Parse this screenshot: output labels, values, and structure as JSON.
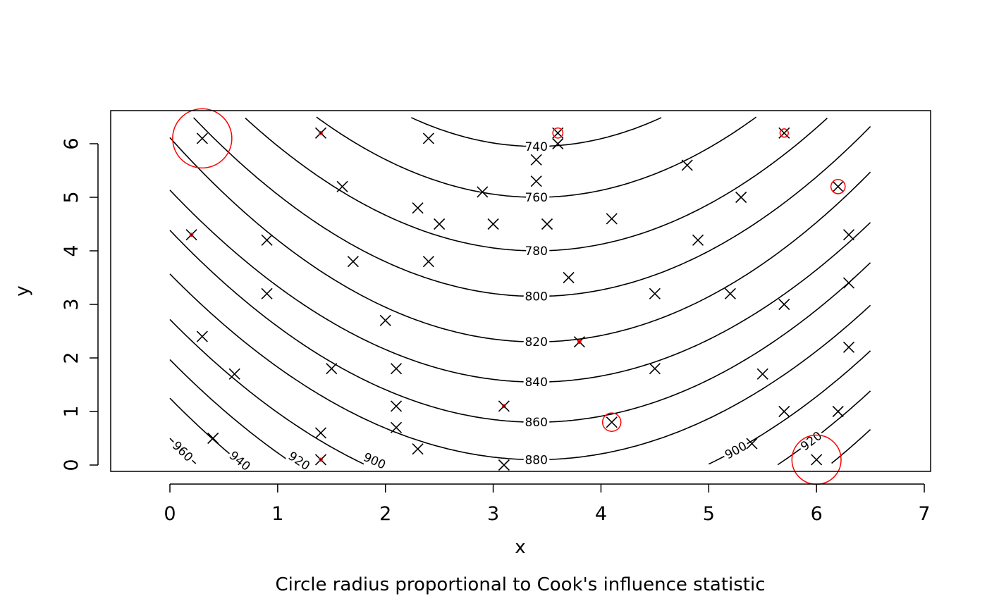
{
  "chart_data": {
    "type": "scatter",
    "title": "",
    "xlabel": "x",
    "ylabel": "y",
    "subtitle": "Circle radius proportional to Cook's influence statistic",
    "xlim": [
      -0.55,
      7.06
    ],
    "ylim": [
      -0.12,
      6.62
    ],
    "xticks": [
      0,
      1,
      2,
      3,
      4,
      5,
      6,
      7
    ],
    "yticks": [
      0,
      1,
      2,
      3,
      4,
      5,
      6
    ],
    "point_marker": "x",
    "points": [
      [
        0.3,
        6.1
      ],
      [
        1.4,
        6.2
      ],
      [
        2.4,
        6.1
      ],
      [
        3.6,
        6.2
      ],
      [
        3.6,
        6.0
      ],
      [
        3.4,
        5.7
      ],
      [
        5.7,
        6.2
      ],
      [
        4.8,
        5.6
      ],
      [
        1.6,
        5.2
      ],
      [
        2.9,
        5.1
      ],
      [
        3.4,
        5.3
      ],
      [
        6.2,
        5.2
      ],
      [
        5.3,
        5.0
      ],
      [
        2.3,
        4.8
      ],
      [
        2.5,
        4.5
      ],
      [
        3.0,
        4.5
      ],
      [
        3.5,
        4.5
      ],
      [
        4.1,
        4.6
      ],
      [
        0.2,
        4.3
      ],
      [
        0.9,
        4.2
      ],
      [
        4.9,
        4.2
      ],
      [
        6.3,
        4.3
      ],
      [
        1.7,
        3.8
      ],
      [
        2.4,
        3.8
      ],
      [
        3.7,
        3.5
      ],
      [
        6.3,
        3.4
      ],
      [
        0.9,
        3.2
      ],
      [
        4.5,
        3.2
      ],
      [
        5.2,
        3.2
      ],
      [
        5.7,
        3.0
      ],
      [
        2.0,
        2.7
      ],
      [
        0.3,
        2.4
      ],
      [
        3.8,
        2.3
      ],
      [
        6.3,
        2.2
      ],
      [
        1.5,
        1.8
      ],
      [
        2.1,
        1.8
      ],
      [
        4.5,
        1.8
      ],
      [
        0.6,
        1.7
      ],
      [
        5.5,
        1.7
      ],
      [
        2.1,
        1.1
      ],
      [
        3.1,
        1.1
      ],
      [
        5.7,
        1.0
      ],
      [
        6.2,
        1.0
      ],
      [
        4.1,
        0.8
      ],
      [
        2.1,
        0.7
      ],
      [
        1.4,
        0.6
      ],
      [
        0.4,
        0.5
      ],
      [
        5.4,
        0.4
      ],
      [
        2.3,
        0.3
      ],
      [
        1.4,
        0.1
      ],
      [
        6.0,
        0.1
      ],
      [
        3.1,
        0.0
      ]
    ],
    "influence_circles": [
      {
        "x": 0.3,
        "y": 6.1,
        "relative_cook": 1.0
      },
      {
        "x": 6.0,
        "y": 0.1,
        "relative_cook": 0.83
      },
      {
        "x": 4.1,
        "y": 0.8,
        "relative_cook": 0.31
      },
      {
        "x": 6.2,
        "y": 5.2,
        "relative_cook": 0.24
      },
      {
        "x": 3.6,
        "y": 6.2,
        "relative_cook": 0.17
      },
      {
        "x": 5.7,
        "y": 6.2,
        "relative_cook": 0.14
      },
      {
        "x": 1.4,
        "y": 6.2,
        "relative_cook": 0.05
      },
      {
        "x": 0.2,
        "y": 4.3,
        "relative_cook": 0.05
      },
      {
        "x": 3.8,
        "y": 2.3,
        "relative_cook": 0.05
      },
      {
        "x": 3.1,
        "y": 1.1,
        "relative_cook": 0.05
      },
      {
        "x": 1.4,
        "y": 0.1,
        "relative_cook": 0.05
      }
    ],
    "circle_color": "#ff0000",
    "contours": [
      {
        "level": 740,
        "vertex_y": 5.95,
        "curvature": 0.4
      },
      {
        "level": 760,
        "vertex_y": 5.0,
        "curvature": 0.36
      },
      {
        "level": 780,
        "vertex_y": 4.0,
        "curvature": 0.34
      },
      {
        "level": 800,
        "vertex_y": 3.15,
        "curvature": 0.33
      },
      {
        "level": 820,
        "vertex_y": 2.3,
        "curvature": 0.33
      },
      {
        "level": 840,
        "vertex_y": 1.55,
        "curvature": 0.31
      },
      {
        "level": 860,
        "vertex_y": 0.8,
        "curvature": 0.31
      },
      {
        "level": 880,
        "vertex_y": 0.1,
        "curvature": 0.3
      },
      {
        "level": 900,
        "vertex_y": -0.75,
        "curvature": 0.3
      },
      {
        "level": 920,
        "vertex_y": -1.5,
        "curvature": 0.3
      },
      {
        "level": 940,
        "vertex_y": -2.22,
        "curvature": 0.3
      },
      {
        "level": 960,
        "vertex_y": -2.97,
        "curvature": 0.3
      }
    ],
    "contour_center_x": 3.4,
    "contour_domain": [
      0,
      6.5
    ],
    "grid": false
  }
}
